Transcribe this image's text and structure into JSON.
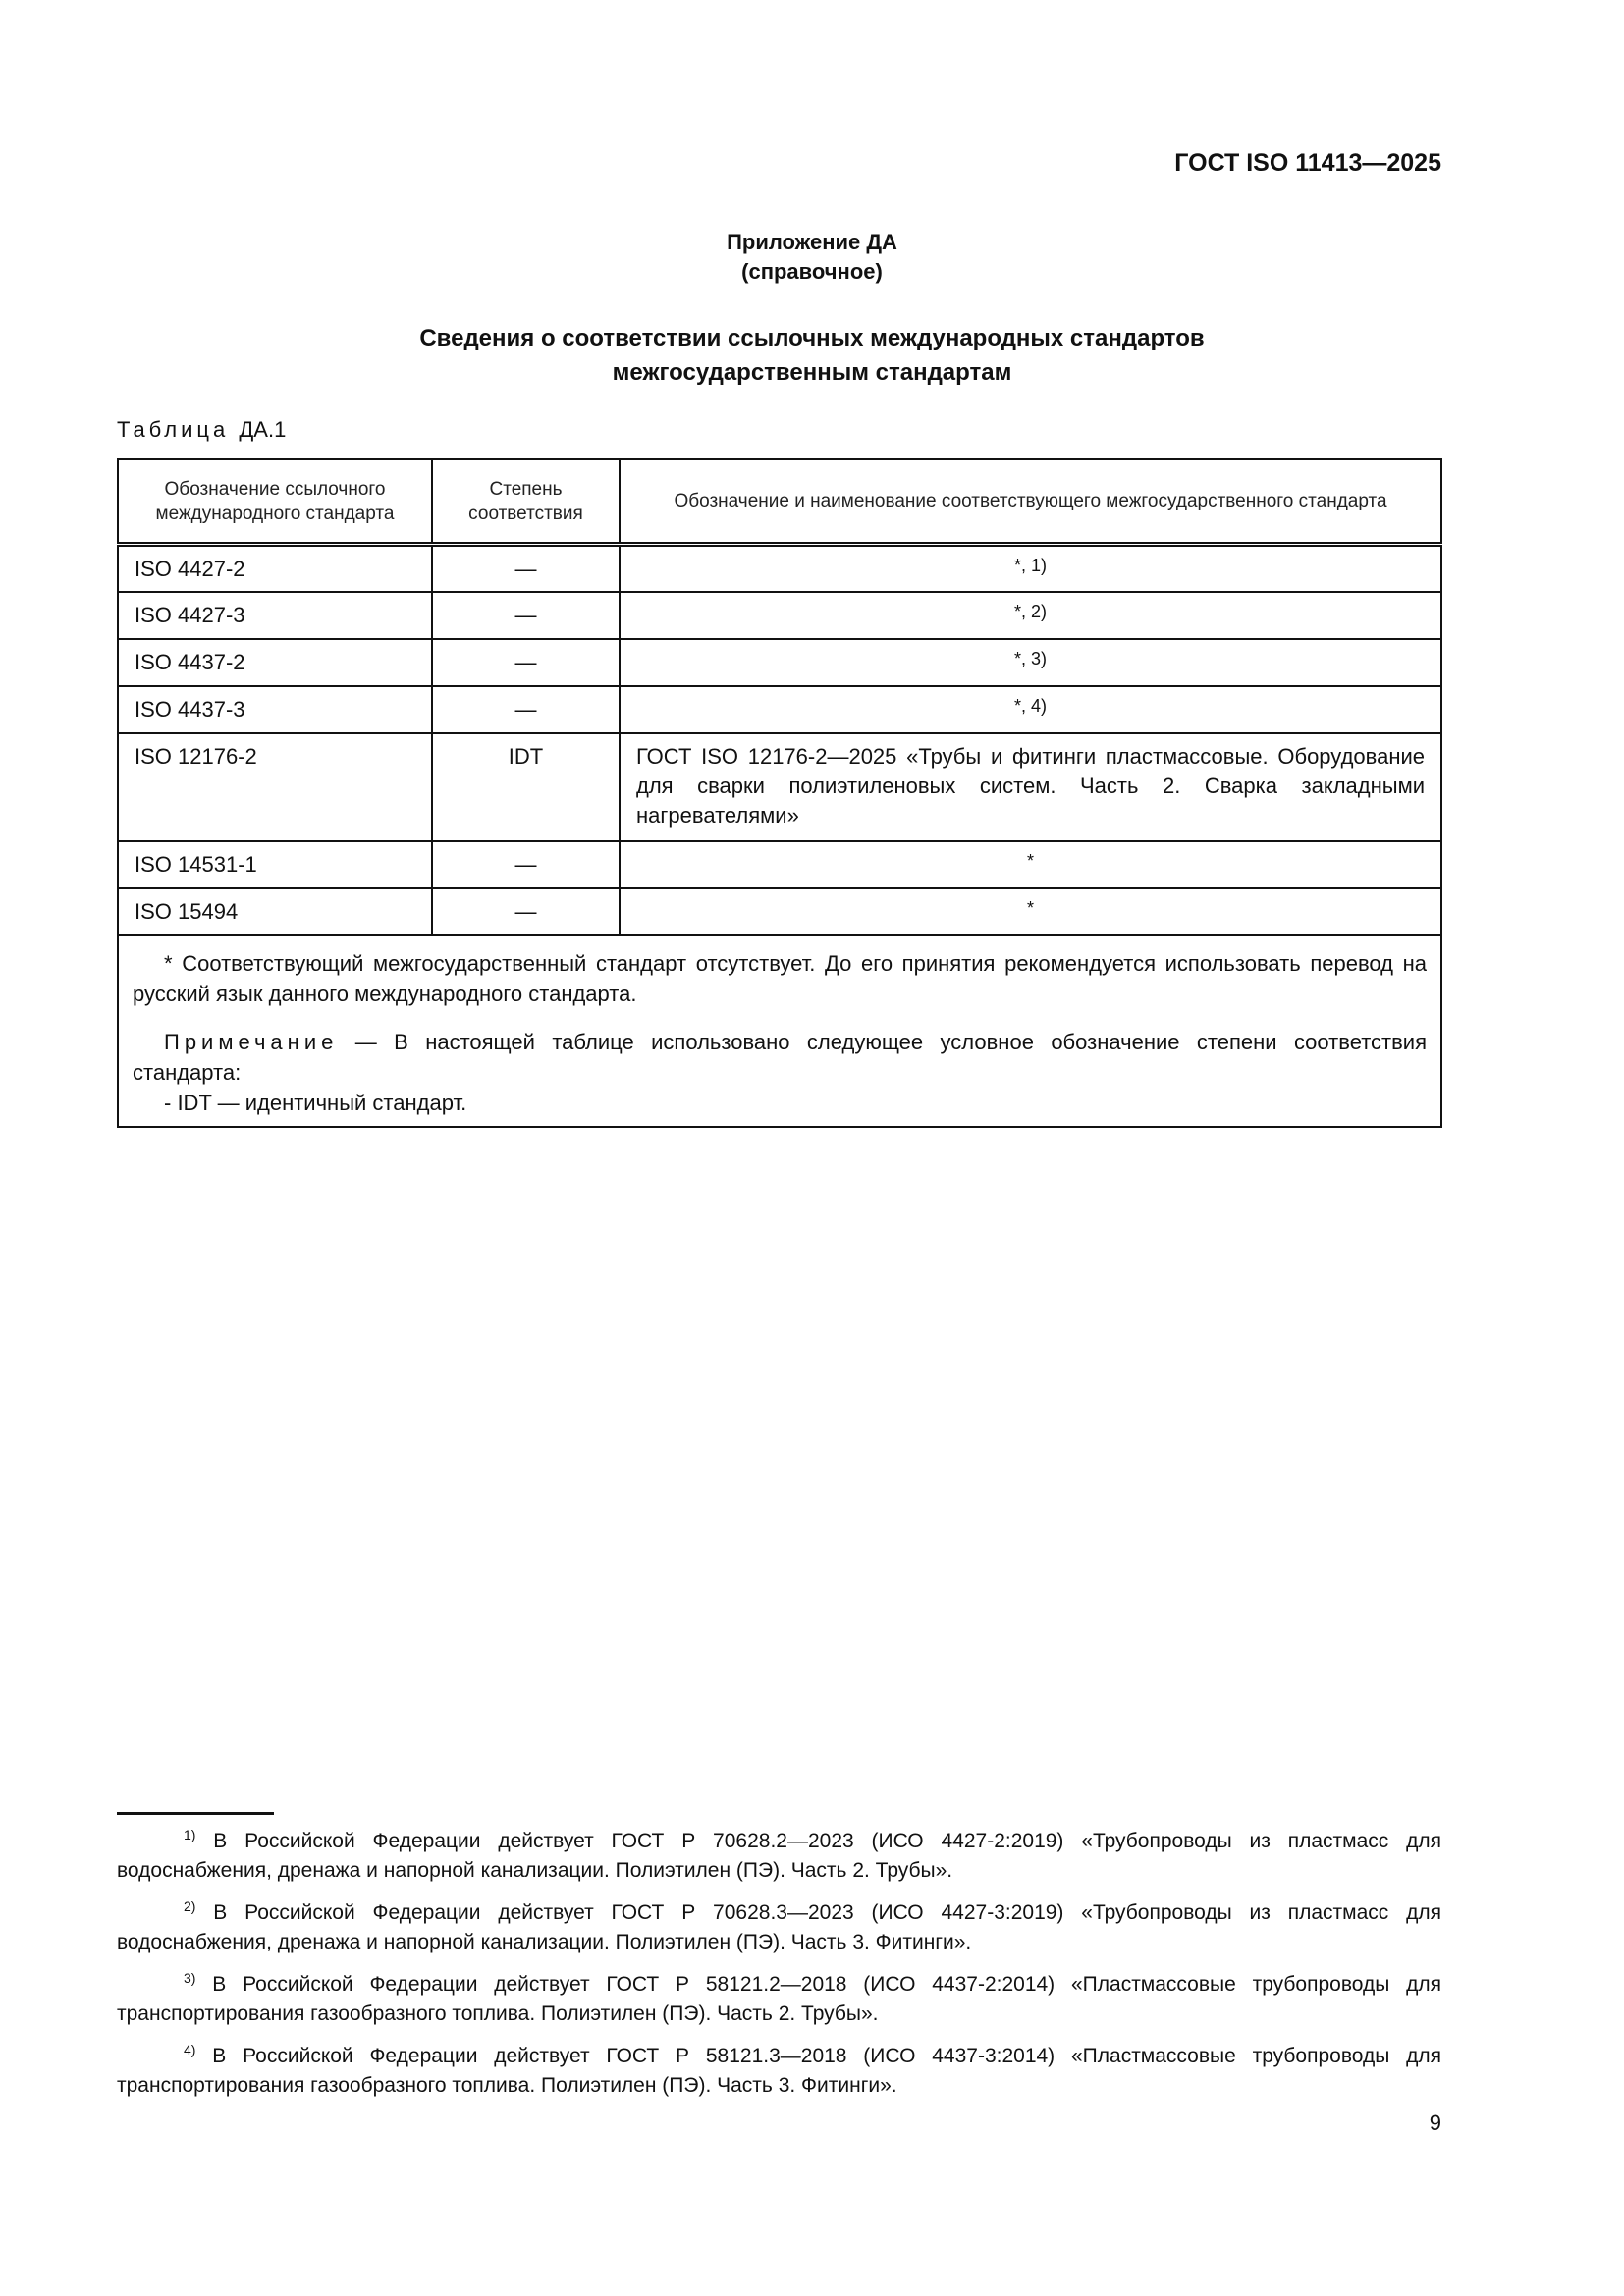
{
  "header": {
    "doc_id": "ГОСТ ISO 11413—2025"
  },
  "annex": {
    "label": "Приложение ДА",
    "kind": "(справочное)"
  },
  "title": {
    "line1": "Сведения о соответствии ссылочных международных стандартов",
    "line2": "межгосударственным стандартам"
  },
  "table": {
    "caption_word": "Таблица",
    "caption_num": "ДА.1",
    "headers": [
      "Обозначение ссылочного международного стандарта",
      "Степень соответствия",
      "Обозначение и наименование соответствующего межгосударственного стандарта"
    ],
    "rows": [
      {
        "ref": "ISO 4427-2",
        "degree": "—",
        "national": "*, 1)"
      },
      {
        "ref": "ISO 4427-3",
        "degree": "—",
        "national": "*, 2)"
      },
      {
        "ref": "ISO 4437-2",
        "degree": "—",
        "national": "*, 3)"
      },
      {
        "ref": "ISO 4437-3",
        "degree": "—",
        "national": "*, 4)"
      },
      {
        "ref": "ISO 12176-2",
        "degree": "IDT",
        "national": "ГОСТ ISO 12176-2—2025 «Трубы и фитинги пластмассовые. Оборудование для сварки полиэтиленовых систем. Часть 2. Сварка закладными нагревателями»"
      },
      {
        "ref": "ISO 14531-1",
        "degree": "—",
        "national": "*"
      },
      {
        "ref": "ISO 15494",
        "degree": "—",
        "national": "*"
      }
    ],
    "footnote": "* Соответствующий межгосударственный стандарт отсутствует. До его принятия рекомендуется использовать перевод на русский язык данного международного стандарта.",
    "note_label": "Примечание",
    "note_text": " — В настоящей таблице использовано следующее условное обозначение степени соответствия стандарта:",
    "note_item": "- IDT — идентичный стандарт."
  },
  "footnotes": [
    {
      "mark": "1)",
      "text": " В Российской Федерации действует ГОСТ Р 70628.2—2023 (ИСО 4427-2:2019) «Трубопроводы из пластмасс для водоснабжения, дренажа и напорной канализации. Полиэтилен (ПЭ). Часть 2. Трубы»."
    },
    {
      "mark": "2)",
      "text": " В Российской Федерации действует ГОСТ Р 70628.3—2023 (ИСО 4427-3:2019) «Трубопроводы из пластмасс для водоснабжения, дренажа и напорной канализации. Полиэтилен (ПЭ). Часть 3. Фитинги»."
    },
    {
      "mark": "3)",
      "text": " В Российской Федерации действует ГОСТ Р 58121.2—2018 (ИСО 4437-2:2014) «Пластмассовые трубопроводы для транспортирования газообразного топлива. Полиэтилен (ПЭ). Часть 2. Трубы»."
    },
    {
      "mark": "4)",
      "text": " В Российской Федерации действует ГОСТ Р 58121.3—2018 (ИСО 4437-3:2014) «Пластмассовые трубопроводы для транспортирования газообразного топлива. Полиэтилен (ПЭ). Часть 3. Фитинги»."
    }
  ],
  "page_number": "9"
}
